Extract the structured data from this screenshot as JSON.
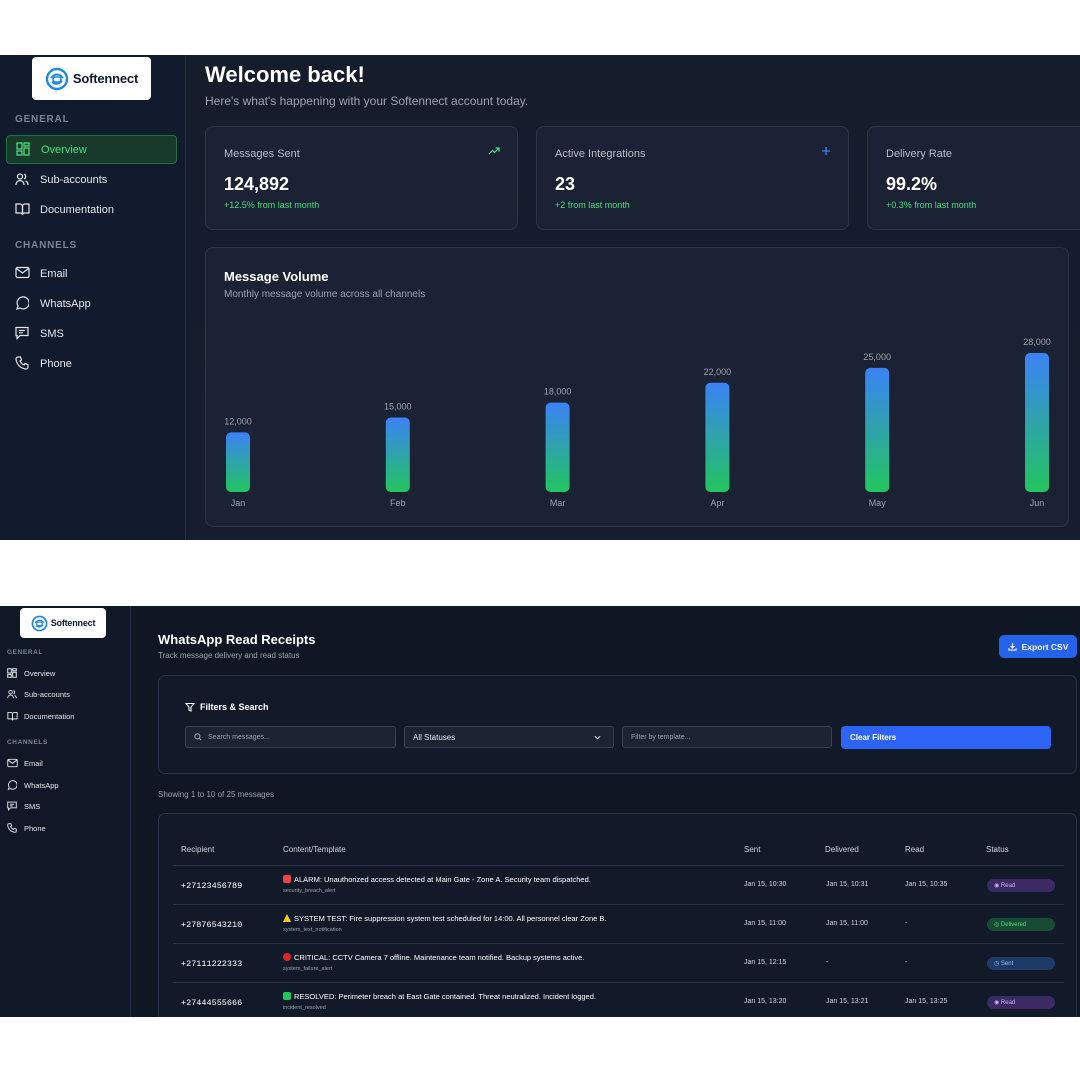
{
  "brand": {
    "name": "Softennect",
    "accent": "#22c55e",
    "primary": "#2563eb"
  },
  "sidebar": {
    "general_label": "GENERAL",
    "channels_label": "CHANNELS",
    "general_items": [
      {
        "label": "Overview",
        "icon": "grid-icon",
        "active": true
      },
      {
        "label": "Sub-accounts",
        "icon": "users-icon"
      },
      {
        "label": "Documentation",
        "icon": "book-icon"
      }
    ],
    "channel_items": [
      {
        "label": "Email",
        "icon": "mail-icon"
      },
      {
        "label": "WhatsApp",
        "icon": "chat-bubble-icon"
      },
      {
        "label": "SMS",
        "icon": "message-square-icon"
      },
      {
        "label": "Phone",
        "icon": "phone-icon"
      }
    ]
  },
  "dashboard": {
    "title": "Welcome back!",
    "subtitle": "Here's what's happening with your Softennect account today.",
    "stats": [
      {
        "label": "Messages Sent",
        "value": "124,892",
        "delta": "+12.5% from last month",
        "icon": "trending-up-icon"
      },
      {
        "label": "Active Integrations",
        "value": "23",
        "delta": "+2 from last month",
        "icon": "plus-icon"
      },
      {
        "label": "Delivery Rate",
        "value": "99.2%",
        "delta": "+0.3% from last month",
        "icon": ""
      }
    ]
  },
  "chart_data": {
    "type": "bar",
    "title": "Message Volume",
    "subtitle": "Monthly message volume across all channels",
    "categories": [
      "Jan",
      "Feb",
      "Mar",
      "Apr",
      "May",
      "Jun"
    ],
    "values": [
      12000,
      15000,
      18000,
      22000,
      25000,
      28000
    ],
    "value_labels": [
      "12,000",
      "15,000",
      "18,000",
      "22,000",
      "25,000",
      "28,000"
    ],
    "bar_gradient": [
      "#3b82f6",
      "#22c55e"
    ],
    "grid": false
  },
  "receipts": {
    "title": "WhatsApp Read Receipts",
    "subtitle": "Track message delivery and read status",
    "export_label": "Export CSV",
    "filters_title": "Filters & Search",
    "search_placeholder": "Search messages...",
    "status_selected": "All Statuses",
    "template_placeholder": "Filter by template...",
    "clear_label": "Clear Filters",
    "showing": "Showing 1 to 10 of 25 messages",
    "columns": [
      "Recipient",
      "Content/Template",
      "Sent",
      "Delivered",
      "Read",
      "Status"
    ],
    "rows": [
      {
        "recipient": "+27123456789",
        "emoji_color": "#ef4444",
        "content": "ALARM: Unauthorized access detected at Main Gate - Zone A. Security team dispatched.",
        "template": "security_breach_alert",
        "sent": "Jan 15, 10:30",
        "delivered": "Jan 15, 10:31",
        "read": "Jan 15, 10:35",
        "status": "Read"
      },
      {
        "recipient": "+27876543210",
        "emoji_color": "#facc15",
        "content": "SYSTEM TEST: Fire suppression system test scheduled for 14:00. All personnel clear Zone B.",
        "template": "system_test_notification",
        "sent": "Jan 15, 11:00",
        "delivered": "Jan 15, 11:00",
        "read": "-",
        "status": "Delivered"
      },
      {
        "recipient": "+27111222333",
        "emoji_color": "#dc2626",
        "content": "CRITICAL: CCTV Camera 7 offline. Maintenance team notified. Backup systems active.",
        "template": "system_failure_alert",
        "sent": "Jan 15, 12:15",
        "delivered": "-",
        "read": "-",
        "status": "Sent"
      },
      {
        "recipient": "+27444555666",
        "emoji_color": "#22c55e",
        "content": "RESOLVED: Perimeter breach at East Gate contained. Threat neutralized. Incident logged.",
        "template": "incident_resolved",
        "sent": "Jan 15, 13:20",
        "delivered": "Jan 15, 13:21",
        "read": "Jan 15, 13:25",
        "status": "Read"
      }
    ]
  }
}
